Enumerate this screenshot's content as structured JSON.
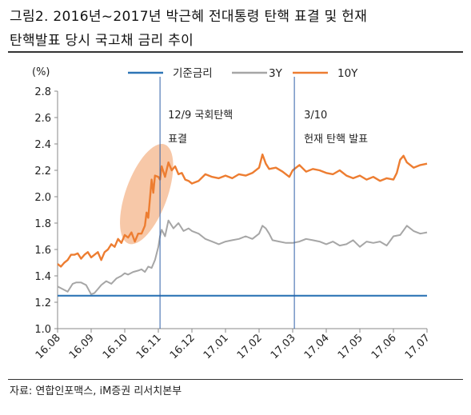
{
  "title_line1": "그림2.  2016년~2017년  박근혜  전대통령  탄핵  표결  및  헌재",
  "title_line2": "탄핵발표 당시 국고채 금리 추이",
  "source": "자료: 연합인포맥스, iM증권 리서치본부",
  "chart_data": {
    "type": "line",
    "title": "",
    "ylabel": "(%)",
    "ylim": [
      1.0,
      2.8
    ],
    "yticks": [
      1.0,
      1.2,
      1.4,
      1.6,
      1.8,
      2.0,
      2.2,
      2.4,
      2.6,
      2.8
    ],
    "ytick_labels": [
      "1.0",
      "1.2",
      "1.4",
      "1.6",
      "1.8",
      "2.0",
      "2.2",
      "2.4",
      "2.6",
      "2.8"
    ],
    "xlim": [
      0,
      11
    ],
    "xticks": [
      0,
      1,
      2,
      3,
      4,
      5,
      6,
      7,
      8,
      9,
      10,
      11
    ],
    "xtick_labels": [
      "16.08",
      "16.09",
      "16.10",
      "16.11",
      "16.12",
      "17.01",
      "17.02",
      "17.03",
      "17.04",
      "17.05",
      "17.06",
      "17.07"
    ],
    "grid": false,
    "legend": "top",
    "series": [
      {
        "name": "기준금리",
        "color": "#2e75b6",
        "x": [
          0,
          11
        ],
        "y": [
          1.25,
          1.25
        ]
      },
      {
        "name": "3Y",
        "color": "#a6a6a6",
        "x": [
          0,
          0.15,
          0.3,
          0.45,
          0.55,
          0.7,
          0.85,
          1.0,
          1.1,
          1.2,
          1.3,
          1.45,
          1.6,
          1.75,
          1.9,
          2.0,
          2.1,
          2.25,
          2.4,
          2.5,
          2.6,
          2.7,
          2.8,
          2.9,
          3.0,
          3.05,
          3.1,
          3.2,
          3.3,
          3.45,
          3.6,
          3.75,
          3.9,
          4.0,
          4.2,
          4.4,
          4.6,
          4.8,
          5.0,
          5.2,
          5.4,
          5.6,
          5.8,
          6.0,
          6.1,
          6.2,
          6.3,
          6.4,
          6.6,
          6.8,
          7.0,
          7.2,
          7.4,
          7.6,
          7.8,
          8.0,
          8.2,
          8.4,
          8.6,
          8.8,
          9.0,
          9.2,
          9.4,
          9.6,
          9.8,
          10.0,
          10.2,
          10.4,
          10.6,
          10.8,
          11.0
        ],
        "y": [
          1.32,
          1.3,
          1.28,
          1.34,
          1.35,
          1.35,
          1.33,
          1.26,
          1.27,
          1.3,
          1.33,
          1.36,
          1.34,
          1.38,
          1.4,
          1.42,
          1.41,
          1.43,
          1.44,
          1.45,
          1.43,
          1.47,
          1.46,
          1.52,
          1.62,
          1.7,
          1.75,
          1.7,
          1.82,
          1.76,
          1.8,
          1.74,
          1.76,
          1.74,
          1.72,
          1.68,
          1.66,
          1.64,
          1.66,
          1.67,
          1.68,
          1.7,
          1.68,
          1.72,
          1.78,
          1.76,
          1.72,
          1.67,
          1.66,
          1.65,
          1.65,
          1.66,
          1.68,
          1.67,
          1.66,
          1.64,
          1.66,
          1.63,
          1.64,
          1.67,
          1.62,
          1.66,
          1.65,
          1.66,
          1.63,
          1.7,
          1.71,
          1.78,
          1.74,
          1.72,
          1.73
        ]
      },
      {
        "name": "10Y",
        "color": "#ed7d31",
        "x": [
          0,
          0.1,
          0.2,
          0.3,
          0.4,
          0.5,
          0.6,
          0.7,
          0.8,
          0.9,
          1.0,
          1.1,
          1.2,
          1.3,
          1.4,
          1.5,
          1.6,
          1.7,
          1.8,
          1.9,
          2.0,
          2.1,
          2.2,
          2.3,
          2.4,
          2.5,
          2.6,
          2.65,
          2.7,
          2.8,
          2.85,
          2.9,
          3.0,
          3.05,
          3.1,
          3.2,
          3.3,
          3.4,
          3.5,
          3.6,
          3.7,
          3.8,
          3.9,
          4.0,
          4.2,
          4.4,
          4.6,
          4.8,
          5.0,
          5.2,
          5.4,
          5.6,
          5.8,
          6.0,
          6.1,
          6.2,
          6.3,
          6.5,
          6.7,
          6.9,
          7.0,
          7.2,
          7.4,
          7.6,
          7.8,
          8.0,
          8.2,
          8.4,
          8.6,
          8.8,
          9.0,
          9.2,
          9.4,
          9.6,
          9.8,
          10.0,
          10.1,
          10.2,
          10.3,
          10.4,
          10.6,
          10.8,
          11.0
        ],
        "y": [
          1.49,
          1.47,
          1.5,
          1.52,
          1.56,
          1.56,
          1.57,
          1.53,
          1.56,
          1.58,
          1.54,
          1.56,
          1.58,
          1.52,
          1.58,
          1.6,
          1.64,
          1.62,
          1.68,
          1.65,
          1.71,
          1.69,
          1.73,
          1.66,
          1.72,
          1.72,
          1.78,
          1.88,
          1.84,
          2.13,
          2.03,
          2.16,
          2.15,
          2.13,
          2.23,
          2.15,
          2.26,
          2.2,
          2.23,
          2.17,
          2.18,
          2.13,
          2.12,
          2.1,
          2.12,
          2.17,
          2.15,
          2.14,
          2.16,
          2.14,
          2.17,
          2.16,
          2.18,
          2.22,
          2.32,
          2.25,
          2.21,
          2.22,
          2.19,
          2.15,
          2.2,
          2.24,
          2.19,
          2.21,
          2.2,
          2.18,
          2.17,
          2.2,
          2.16,
          2.14,
          2.16,
          2.13,
          2.15,
          2.12,
          2.14,
          2.13,
          2.18,
          2.28,
          2.31,
          2.26,
          2.22,
          2.24,
          2.25
        ]
      }
    ],
    "annotations": [
      {
        "x": 3.05,
        "line1": "12/9 국회탄핵",
        "line2": "표결"
      },
      {
        "x": 7.05,
        "line1": "3/10",
        "line2": "헌재 탄핵 발표"
      }
    ],
    "highlight_ellipse_color": "#f4b183"
  }
}
